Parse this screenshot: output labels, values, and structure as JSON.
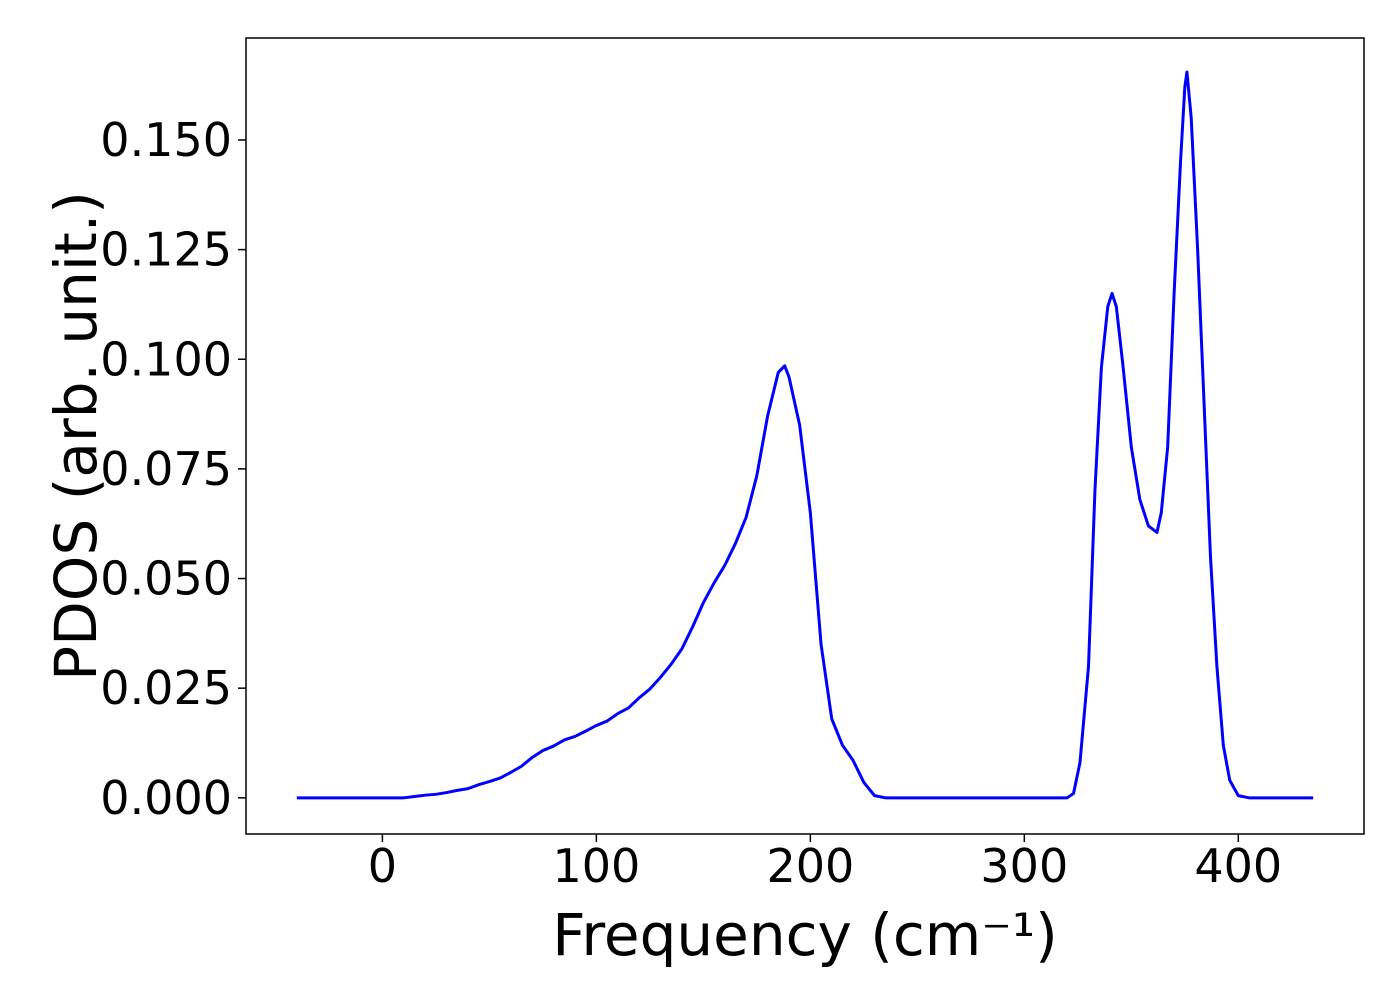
{
  "chart_data": {
    "type": "line",
    "xlabel": "Frequency (cm⁻¹)",
    "ylabel": "PDOS (arb. unit.)",
    "x": [
      -40,
      -20,
      0,
      10,
      15,
      20,
      25,
      30,
      35,
      40,
      45,
      50,
      55,
      60,
      65,
      70,
      75,
      80,
      85,
      90,
      95,
      100,
      105,
      110,
      115,
      120,
      125,
      130,
      135,
      140,
      145,
      150,
      155,
      160,
      165,
      170,
      175,
      180,
      185,
      188,
      190,
      195,
      200,
      205,
      210,
      215,
      220,
      225,
      230,
      235,
      260,
      300,
      320,
      323,
      326,
      330,
      333,
      336,
      339,
      341,
      343,
      346,
      350,
      354,
      358,
      362,
      364,
      367,
      370,
      373,
      375,
      376,
      378,
      381,
      384,
      387,
      390,
      393,
      396,
      400,
      405,
      420,
      435
    ],
    "series": [
      {
        "name": "PDOS",
        "color": "#0000ff",
        "values": [
          0,
          0,
          0,
          0,
          0.0003,
          0.0006,
          0.0008,
          0.0012,
          0.0017,
          0.0021,
          0.003,
          0.0037,
          0.0045,
          0.0058,
          0.0072,
          0.0092,
          0.0108,
          0.0118,
          0.0132,
          0.014,
          0.0152,
          0.0165,
          0.0175,
          0.0192,
          0.0205,
          0.0228,
          0.0248,
          0.0275,
          0.0305,
          0.034,
          0.039,
          0.0445,
          0.049,
          0.053,
          0.058,
          0.064,
          0.0735,
          0.087,
          0.097,
          0.0985,
          0.096,
          0.085,
          0.065,
          0.035,
          0.018,
          0.012,
          0.0085,
          0.0035,
          0.0005,
          0,
          0,
          0,
          0,
          0.001,
          0.008,
          0.03,
          0.07,
          0.098,
          0.112,
          0.115,
          0.112,
          0.099,
          0.08,
          0.068,
          0.062,
          0.0605,
          0.065,
          0.08,
          0.115,
          0.145,
          0.162,
          0.1655,
          0.155,
          0.125,
          0.09,
          0.055,
          0.03,
          0.012,
          0.004,
          0.0005,
          0,
          0,
          0
        ]
      }
    ],
    "xlim": [
      -63.75,
      458.75
    ],
    "ylim": [
      -0.00825,
      0.17325
    ],
    "xticks": [
      0,
      100,
      200,
      300,
      400
    ],
    "yticks": [
      {
        "value": 0,
        "label": "0.000"
      },
      {
        "value": 0.025,
        "label": "0.025"
      },
      {
        "value": 0.05,
        "label": "0.050"
      },
      {
        "value": 0.075,
        "label": "0.075"
      },
      {
        "value": 0.1,
        "label": "0.100"
      },
      {
        "value": 0.125,
        "label": "0.125"
      },
      {
        "value": 0.15,
        "label": "0.150"
      }
    ]
  }
}
